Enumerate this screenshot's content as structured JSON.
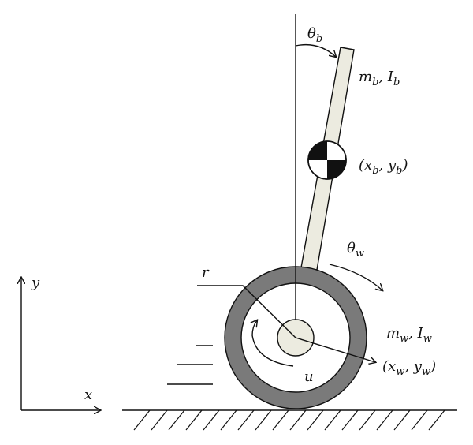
{
  "labels": {
    "theta_b": {
      "sym": "θ",
      "sub": "b"
    },
    "body_mass": {
      "m": "m",
      "m_sub": "b",
      "sep": ", ",
      "i": "I",
      "i_sub": "b"
    },
    "body_pos": {
      "open": "(",
      "x": "x",
      "x_sub": "b",
      "sep": ", ",
      "y": "y",
      "y_sub": "b",
      "close": ")"
    },
    "theta_w": {
      "sym": "θ",
      "sub": "w"
    },
    "radius": "r",
    "wheel_mass": {
      "m": "m",
      "m_sub": "w",
      "sep": ", ",
      "i": "I",
      "i_sub": "w"
    },
    "wheel_pos": {
      "open": "(",
      "x": "x",
      "x_sub": "w",
      "sep": ", ",
      "y": "y",
      "y_sub": "w",
      "close": ")"
    },
    "torque": "u",
    "axis_x": "x",
    "axis_y": "y"
  },
  "colors": {
    "stroke": "#111111",
    "body_fill": "#ecebe0",
    "tire_fill": "#7a7a7a",
    "hub_fill": "#ecebe0",
    "com_dark": "#111111",
    "com_light": "#ffffff"
  }
}
